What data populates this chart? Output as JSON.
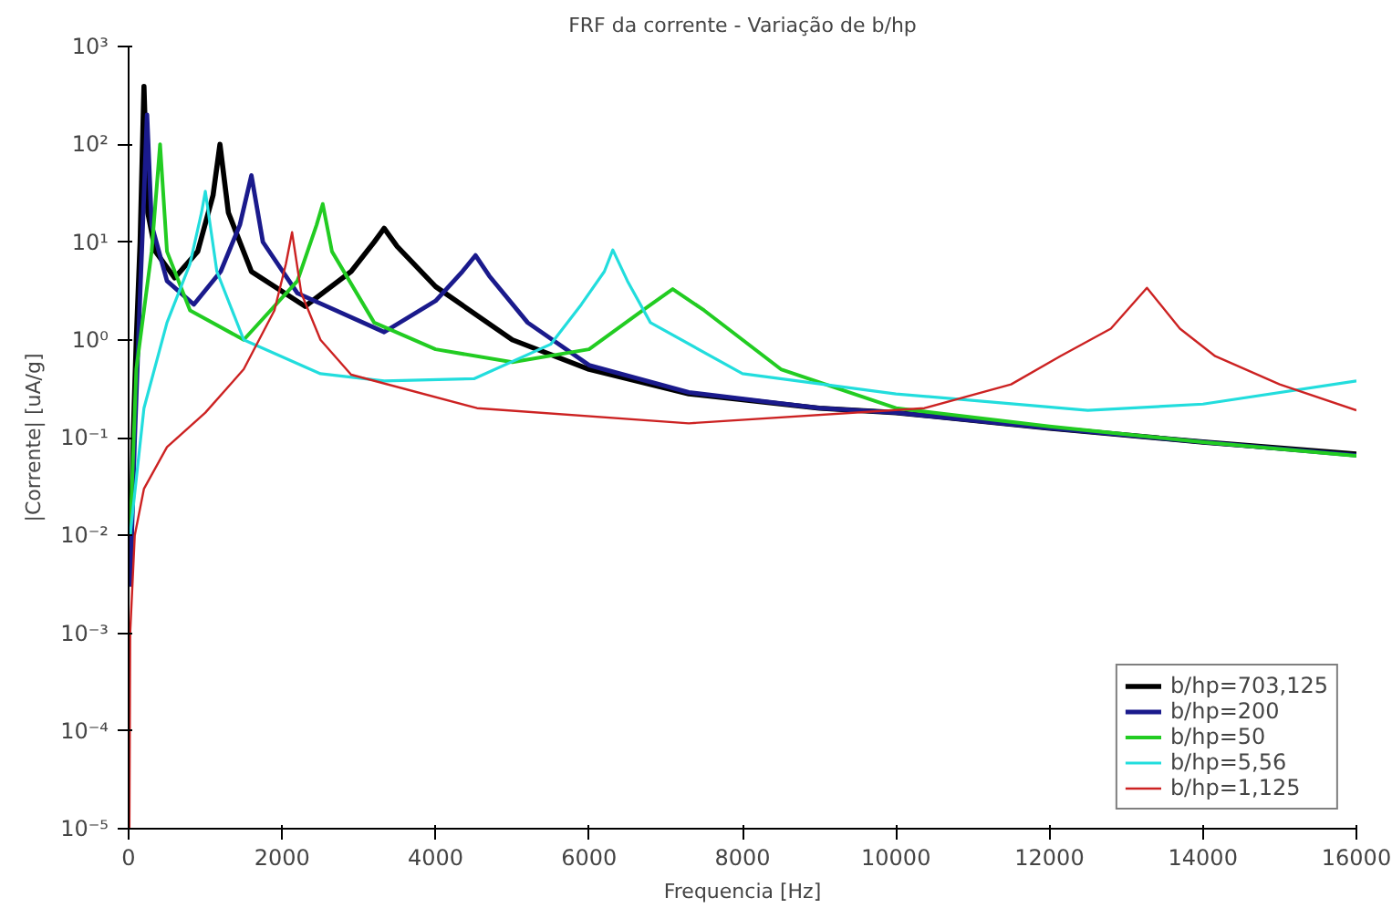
{
  "chart_data": {
    "type": "line",
    "title": "FRF da corrente - Variação de b/hp",
    "xlabel": "Frequencia [Hz]",
    "ylabel": "|Corrente| [uA/g]",
    "log": "y",
    "grid": false,
    "legend": "bottom right",
    "line_style": "solid",
    "marker": "none",
    "xlim": [
      0,
      16000
    ],
    "xticks": [
      0,
      2000,
      4000,
      6000,
      8000,
      10000,
      12000,
      14000,
      16000
    ],
    "ylim": [
      1e-05,
      1000
    ],
    "yticks": [
      {
        "value": 1e-05,
        "label": "10⁻⁵"
      },
      {
        "value": 0.0001,
        "label": "10⁻⁴"
      },
      {
        "value": 0.001,
        "label": "10⁻³"
      },
      {
        "value": 0.01,
        "label": "10⁻²"
      },
      {
        "value": 0.1,
        "label": "10⁻¹"
      },
      {
        "value": 1,
        "label": "10⁰"
      },
      {
        "value": 10,
        "label": "10¹"
      },
      {
        "value": 100,
        "label": "10²"
      },
      {
        "value": 1000,
        "label": "10³"
      }
    ],
    "series": [
      {
        "name": "b/hp=703,125",
        "color": "#000000",
        "x": [
          20,
          60,
          100,
          150,
          200,
          250,
          350,
          600,
          900,
          1100,
          1190,
          1300,
          1600,
          2300,
          2900,
          3200,
          3330,
          3500,
          4000,
          5000,
          6000,
          7300,
          9000,
          10000,
          12000,
          14000,
          16000
        ],
        "values": [
          0.003,
          0.1,
          1,
          10,
          390,
          20,
          8,
          4.3,
          8,
          30,
          100,
          20,
          5,
          2.2,
          5,
          10,
          13.8,
          9,
          3.5,
          1.0,
          0.5,
          0.28,
          0.2,
          0.18,
          0.125,
          0.09,
          0.068
        ]
      },
      {
        "name": "b/hp=200",
        "color": "#1a1a8c",
        "x": [
          20,
          80,
          150,
          200,
          240,
          300,
          500,
          850,
          1200,
          1450,
          1600,
          1750,
          2200,
          3330,
          4000,
          4350,
          4520,
          4700,
          5200,
          6000,
          7300,
          9000,
          10000,
          12000,
          14000,
          16000
        ],
        "values": [
          0.003,
          0.1,
          3,
          30,
          200,
          15,
          4,
          2.3,
          5,
          15,
          48,
          10,
          3,
          1.2,
          2.5,
          5,
          7.3,
          4.5,
          1.5,
          0.55,
          0.29,
          0.2,
          0.18,
          0.125,
          0.09,
          0.066
        ]
      },
      {
        "name": "b/hp=50",
        "color": "#22cc22",
        "x": [
          20,
          100,
          200,
          300,
          410,
          500,
          800,
          1500,
          2200,
          2450,
          2530,
          2650,
          3200,
          4000,
          5000,
          6000,
          6700,
          7090,
          7500,
          8500,
          10000,
          12000,
          14000,
          16000
        ],
        "values": [
          0.01,
          0.5,
          2,
          8,
          100,
          8,
          2,
          1.0,
          4,
          15,
          24.5,
          8,
          1.5,
          0.8,
          0.59,
          0.8,
          2,
          3.3,
          2,
          0.5,
          0.2,
          0.13,
          0.09,
          0.065
        ]
      },
      {
        "name": "b/hp=5,56",
        "color": "#22dddd",
        "x": [
          20,
          200,
          500,
          800,
          950,
          1000,
          1150,
          1500,
          2500,
          3330,
          4500,
          5500,
          5900,
          6200,
          6310,
          6500,
          6800,
          8000,
          10000,
          12500,
          14000,
          16000
        ],
        "values": [
          0.01,
          0.2,
          1.5,
          6,
          20,
          33,
          5,
          1.0,
          0.45,
          0.38,
          0.4,
          0.9,
          2.3,
          5,
          8.3,
          4,
          1.5,
          0.45,
          0.28,
          0.19,
          0.22,
          0.38
        ]
      },
      {
        "name": "b/hp=1,125",
        "color": "#cc2222",
        "x": [
          10,
          20,
          80,
          200,
          500,
          1000,
          1500,
          1900,
          2050,
          2130,
          2250,
          2500,
          2900,
          4540,
          7300,
          10370,
          11500,
          12140,
          12800,
          13270,
          13700,
          14160,
          15000,
          16000
        ],
        "values": [
          1e-05,
          0.001,
          0.01,
          0.03,
          0.08,
          0.18,
          0.5,
          2,
          6,
          12.6,
          3,
          1,
          0.44,
          0.2,
          0.14,
          0.2,
          0.35,
          0.68,
          1.3,
          3.4,
          1.3,
          0.68,
          0.35,
          0.19
        ]
      }
    ]
  }
}
